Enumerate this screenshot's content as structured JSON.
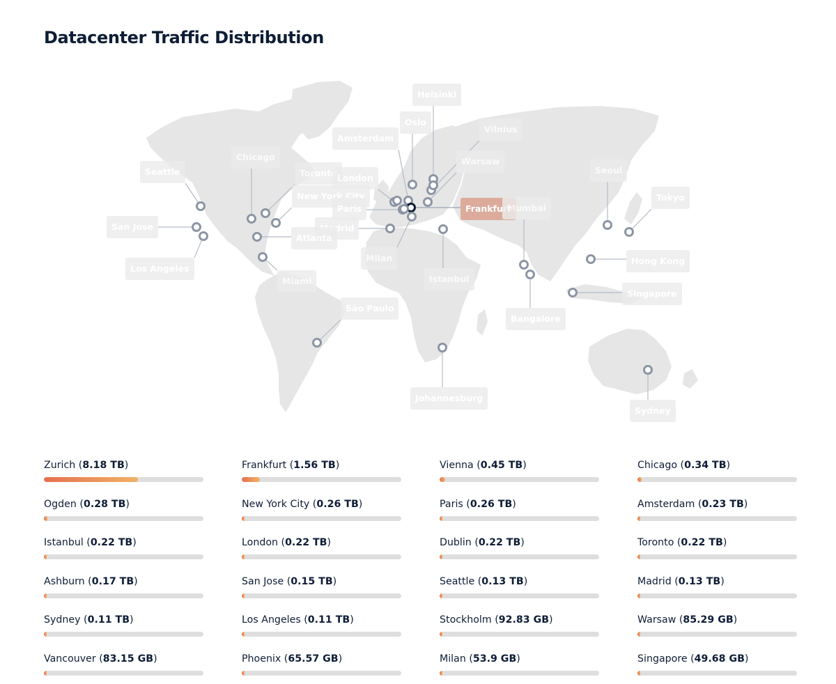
{
  "title": "Datacenter Traffic Distribution",
  "map": {
    "active_location": "Frankfurt",
    "locations": [
      {
        "name": "Helsinki"
      },
      {
        "name": "Oslo"
      },
      {
        "name": "Vilnius"
      },
      {
        "name": "Amsterdam"
      },
      {
        "name": "Warsaw"
      },
      {
        "name": "Chicago"
      },
      {
        "name": "Seattle"
      },
      {
        "name": "Toronto"
      },
      {
        "name": "London"
      },
      {
        "name": "Seoul"
      },
      {
        "name": "New York City"
      },
      {
        "name": "Tokyo"
      },
      {
        "name": "Paris"
      },
      {
        "name": "Frankfurt"
      },
      {
        "name": "Mumbai"
      },
      {
        "name": "San Jose"
      },
      {
        "name": "Madrid"
      },
      {
        "name": "Atlanta"
      },
      {
        "name": "Milan"
      },
      {
        "name": "Hong Kong"
      },
      {
        "name": "Los Angeles"
      },
      {
        "name": "Istanbul"
      },
      {
        "name": "Miami"
      },
      {
        "name": "Singapore"
      },
      {
        "name": "São Paulo"
      },
      {
        "name": "Bangalore"
      },
      {
        "name": "Johannesburg"
      },
      {
        "name": "Sydney"
      }
    ],
    "colors": {
      "land": "#e6e6e6",
      "marker": "#8c95a4",
      "active_marker": "#0e1d36",
      "active_label": "#dcab9c",
      "label": "#ececec"
    }
  },
  "stats": [
    {
      "name": "Zurich",
      "value": "8.18 TB",
      "share": 0.59
    },
    {
      "name": "Frankfurt",
      "value": "1.56 TB",
      "share": 0.113
    },
    {
      "name": "Vienna",
      "value": "0.45 TB",
      "share": 0.033
    },
    {
      "name": "Chicago",
      "value": "0.34 TB",
      "share": 0.025
    },
    {
      "name": "Ogden",
      "value": "0.28 TB",
      "share": 0.02
    },
    {
      "name": "New York City",
      "value": "0.26 TB",
      "share": 0.019
    },
    {
      "name": "Paris",
      "value": "0.26 TB",
      "share": 0.019
    },
    {
      "name": "Amsterdam",
      "value": "0.23 TB",
      "share": 0.017
    },
    {
      "name": "Istanbul",
      "value": "0.22 TB",
      "share": 0.016
    },
    {
      "name": "London",
      "value": "0.22 TB",
      "share": 0.016
    },
    {
      "name": "Dublin",
      "value": "0.22 TB",
      "share": 0.016
    },
    {
      "name": "Toronto",
      "value": "0.22 TB",
      "share": 0.016
    },
    {
      "name": "Ashburn",
      "value": "0.17 TB",
      "share": 0.012
    },
    {
      "name": "San Jose",
      "value": "0.15 TB",
      "share": 0.011
    },
    {
      "name": "Seattle",
      "value": "0.13 TB",
      "share": 0.009
    },
    {
      "name": "Madrid",
      "value": "0.13 TB",
      "share": 0.009
    },
    {
      "name": "Sydney",
      "value": "0.11 TB",
      "share": 0.008
    },
    {
      "name": "Los Angeles",
      "value": "0.11 TB",
      "share": 0.008
    },
    {
      "name": "Stockholm",
      "value": "92.83 GB",
      "share": 0.007
    },
    {
      "name": "Warsaw",
      "value": "85.29 GB",
      "share": 0.006
    },
    {
      "name": "Vancouver",
      "value": "83.15 GB",
      "share": 0.006
    },
    {
      "name": "Phoenix",
      "value": "65.57 GB",
      "share": 0.005
    },
    {
      "name": "Milan",
      "value": "53.9 GB",
      "share": 0.004
    },
    {
      "name": "Singapore",
      "value": "49.68 GB",
      "share": 0.004
    }
  ]
}
